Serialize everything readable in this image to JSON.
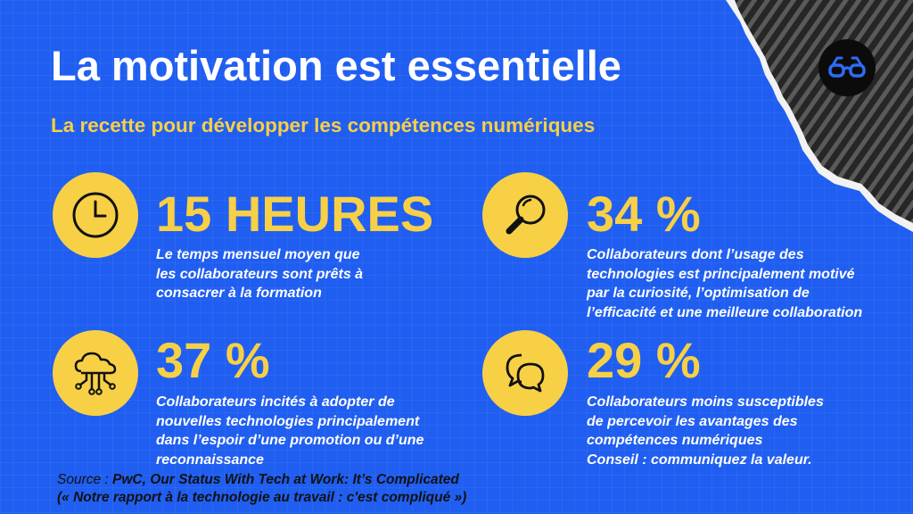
{
  "title": "La motivation est essentielle",
  "subtitle": "La recette pour développer les compétences numériques",
  "logo_icon": "glasses-icon",
  "stats": [
    {
      "icon": "clock-icon",
      "value": "15 HEURES",
      "description": "Le temps mensuel moyen que\nles collaborateurs sont prêts à\nconsacrer à la formation"
    },
    {
      "icon": "magnifier-icon",
      "value": "34 %",
      "description": "Collaborateurs dont l’usage des\ntechnologies est principalement motivé\npar la curiosité, l’optimisation de\nl’efficacité et une meilleure collaboration"
    },
    {
      "icon": "cloud-network-icon",
      "value": "37 %",
      "description": "Collaborateurs incités à adopter de\nnouvelles technologies principalement\ndans l’espoir d’une promotion ou d’une\nreconnaissance"
    },
    {
      "icon": "chat-bubbles-icon",
      "value": "29 %",
      "description": "Collaborateurs moins susceptibles\nde percevoir les avantages des\ncompétences numériques\nConseil : communiquez la valeur."
    }
  ],
  "source": {
    "prefix": "Source : ",
    "line1": "PwC, Our Status With Tech at Work: It’s Complicated",
    "line2": "(« Notre rapport à la technologie au travail : c'est compliqué »)"
  },
  "colors": {
    "background": "#1f5ef0",
    "accent_yellow": "#f7d046",
    "text_white": "#ffffff",
    "corner_dark": "#2b2b2b"
  }
}
